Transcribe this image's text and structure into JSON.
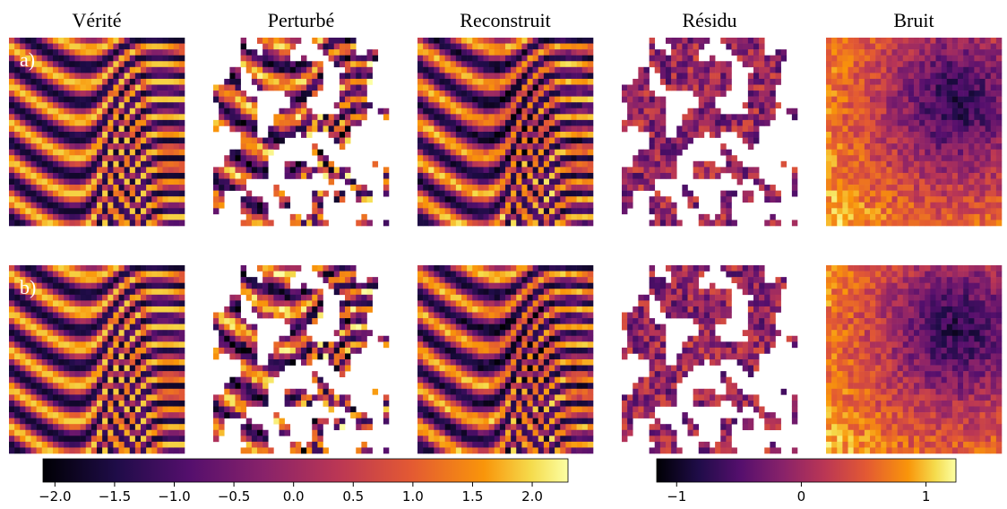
{
  "columns": [
    "Vérité",
    "Perturbé",
    "Reconstruit",
    "Résidu",
    "Bruit"
  ],
  "rows": [
    "a)",
    "b)"
  ],
  "colorbars": [
    {
      "lim": [
        -2.1,
        2.3
      ],
      "ticks": [
        {
          "value": -2,
          "label": "−2.0"
        },
        {
          "value": -1.5,
          "label": "−1.5"
        },
        {
          "value": -1,
          "label": "−1.0"
        },
        {
          "value": -0.5,
          "label": "−0.5"
        },
        {
          "value": 0,
          "label": "0.0"
        },
        0.5,
        {
          "value": 1,
          "label": "1.0"
        },
        1.5,
        {
          "value": 2,
          "label": "2.0"
        }
      ]
    },
    {
      "lim": [
        -1.16,
        1.24
      ],
      "ticks": [
        {
          "value": -1,
          "label": "−1"
        },
        0,
        1
      ]
    }
  ]
}
